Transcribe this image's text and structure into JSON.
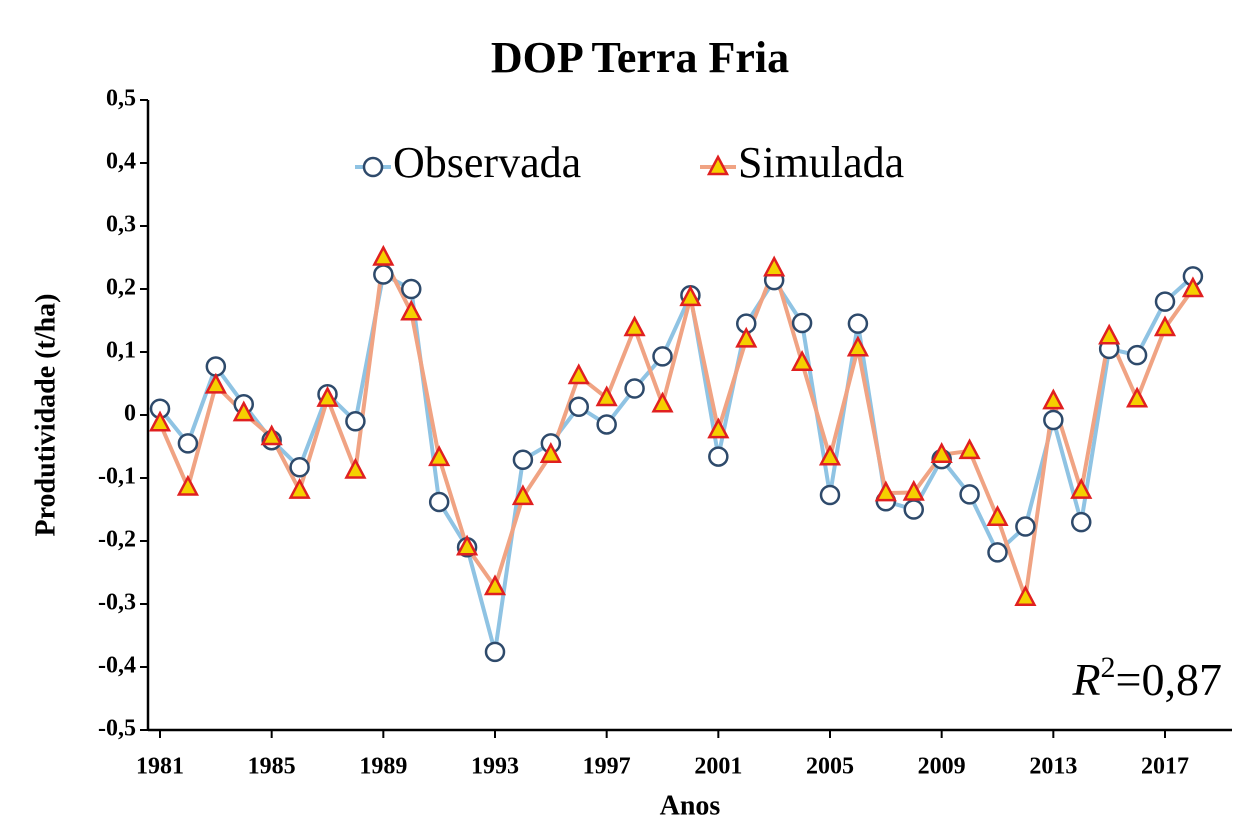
{
  "chart_data": {
    "type": "line",
    "title": "DOP Terra Fria",
    "x_label": "Anos",
    "y_label": "Produtividade (t/ha)",
    "annotation": {
      "symbol": "R",
      "superscript": "2",
      "text": "=0,87"
    },
    "x": [
      1981,
      1982,
      1983,
      1984,
      1985,
      1986,
      1987,
      1988,
      1989,
      1990,
      1991,
      1992,
      1993,
      1994,
      1995,
      1996,
      1997,
      1998,
      1999,
      2000,
      2001,
      2002,
      2003,
      2004,
      2005,
      2006,
      2007,
      2008,
      2009,
      2010,
      2011,
      2012,
      2013,
      2014,
      2015,
      2016,
      2017,
      2018
    ],
    "series": [
      {
        "name": "Observada",
        "color": "#8fc3e3",
        "marker": "circle",
        "marker_fill": "#ffffff",
        "marker_stroke": "#2e4a6b",
        "values": [
          0.01,
          -0.045,
          0.077,
          0.017,
          -0.04,
          -0.083,
          0.033,
          -0.01,
          0.223,
          0.2,
          -0.138,
          -0.21,
          -0.376,
          -0.071,
          -0.045,
          0.013,
          -0.015,
          0.042,
          0.093,
          0.19,
          -0.066,
          0.145,
          0.214,
          0.146,
          -0.127,
          0.145,
          -0.137,
          -0.15,
          -0.07,
          -0.126,
          -0.218,
          -0.177,
          -0.008,
          -0.17,
          0.105,
          0.095,
          0.18,
          0.22
        ]
      },
      {
        "name": "Simulada",
        "color": "#f0a383",
        "marker": "triangle",
        "marker_fill": "#f5d000",
        "marker_stroke": "#e02020",
        "values": [
          -0.013,
          -0.115,
          0.047,
          0.003,
          -0.035,
          -0.12,
          0.026,
          -0.088,
          0.25,
          0.163,
          -0.068,
          -0.21,
          -0.273,
          -0.13,
          -0.063,
          0.062,
          0.027,
          0.138,
          0.017,
          0.186,
          -0.024,
          0.12,
          0.233,
          0.083,
          -0.067,
          0.106,
          -0.124,
          -0.123,
          -0.063,
          -0.057,
          -0.163,
          -0.29,
          0.022,
          -0.12,
          0.125,
          0.025,
          0.138,
          0.2
        ]
      }
    ],
    "xlim": [
      1980.57,
      2019.4
    ],
    "xticks": [
      1981,
      1985,
      1989,
      1993,
      1997,
      2001,
      2005,
      2009,
      2013,
      2017
    ],
    "ylim": [
      -0.5,
      0.5
    ],
    "yticks": [
      {
        "value": -0.5,
        "label": "-0,5"
      },
      {
        "value": -0.4,
        "label": "-0,4"
      },
      {
        "value": -0.3,
        "label": "-0,3"
      },
      {
        "value": -0.2,
        "label": "-0,2"
      },
      {
        "value": -0.1,
        "label": "-0,1"
      },
      0,
      {
        "value": 0.1,
        "label": "0,1"
      },
      {
        "value": 0.2,
        "label": "0,2"
      },
      {
        "value": 0.3,
        "label": "0,3"
      },
      {
        "value": 0.4,
        "label": "0,4"
      },
      {
        "value": 0.5,
        "label": "0,5"
      }
    ],
    "legend": "top"
  }
}
